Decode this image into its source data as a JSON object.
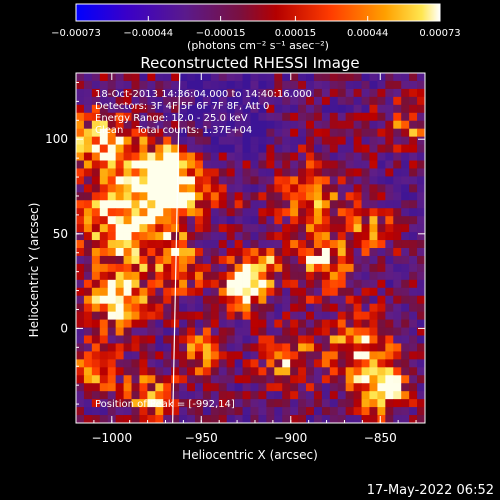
{
  "chart_data": {
    "type": "heatmap",
    "title": "Reconstructed RHESSI Image",
    "info_lines": [
      "18-Oct-2013 14:36:04.000 to 14:40:16.000",
      "Detectors: 3F 4F 5F 6F 7F 8F, Att 0",
      "Energy Range: 12.0 - 25.0 keV",
      "Clean    Total counts: 1.37E+04"
    ],
    "peak_text": "Position of Peak = [-992,14]",
    "footer_timestamp": "17-May-2022 06:52",
    "xlabel": "Heliocentric X (arcsec)",
    "ylabel": "Heliocentric Y (arcsec)",
    "xlim": [
      -1020,
      -825
    ],
    "ylim": [
      -50,
      135
    ],
    "x_ticks": [
      -1000,
      -950,
      -900,
      -850
    ],
    "x_tick_labels": [
      "−1000",
      "−950",
      "−900",
      "−850"
    ],
    "y_ticks": [
      0,
      50,
      100
    ],
    "y_tick_labels": [
      "0",
      "50",
      "100"
    ],
    "colorbar": {
      "range": [
        -0.00073,
        0.00073
      ],
      "ticks": [
        -0.00073,
        -0.00044,
        -0.00015,
        0.00015,
        0.00044,
        0.00073
      ],
      "tick_labels": [
        "−0.00073",
        "−0.00044",
        "−0.00015",
        "0.00015",
        "0.00044",
        "0.00073"
      ],
      "unit_label": "(photons cm⁻² s⁻¹ asec⁻²)",
      "colormap": "blue-purple-red-orange-yellow-white"
    },
    "limb_line_x_top": -962,
    "limb_line_x_bottom": -966,
    "colors": {
      "background": "#000000",
      "text": "#ffffff",
      "limb_line": "#ffffff"
    }
  }
}
